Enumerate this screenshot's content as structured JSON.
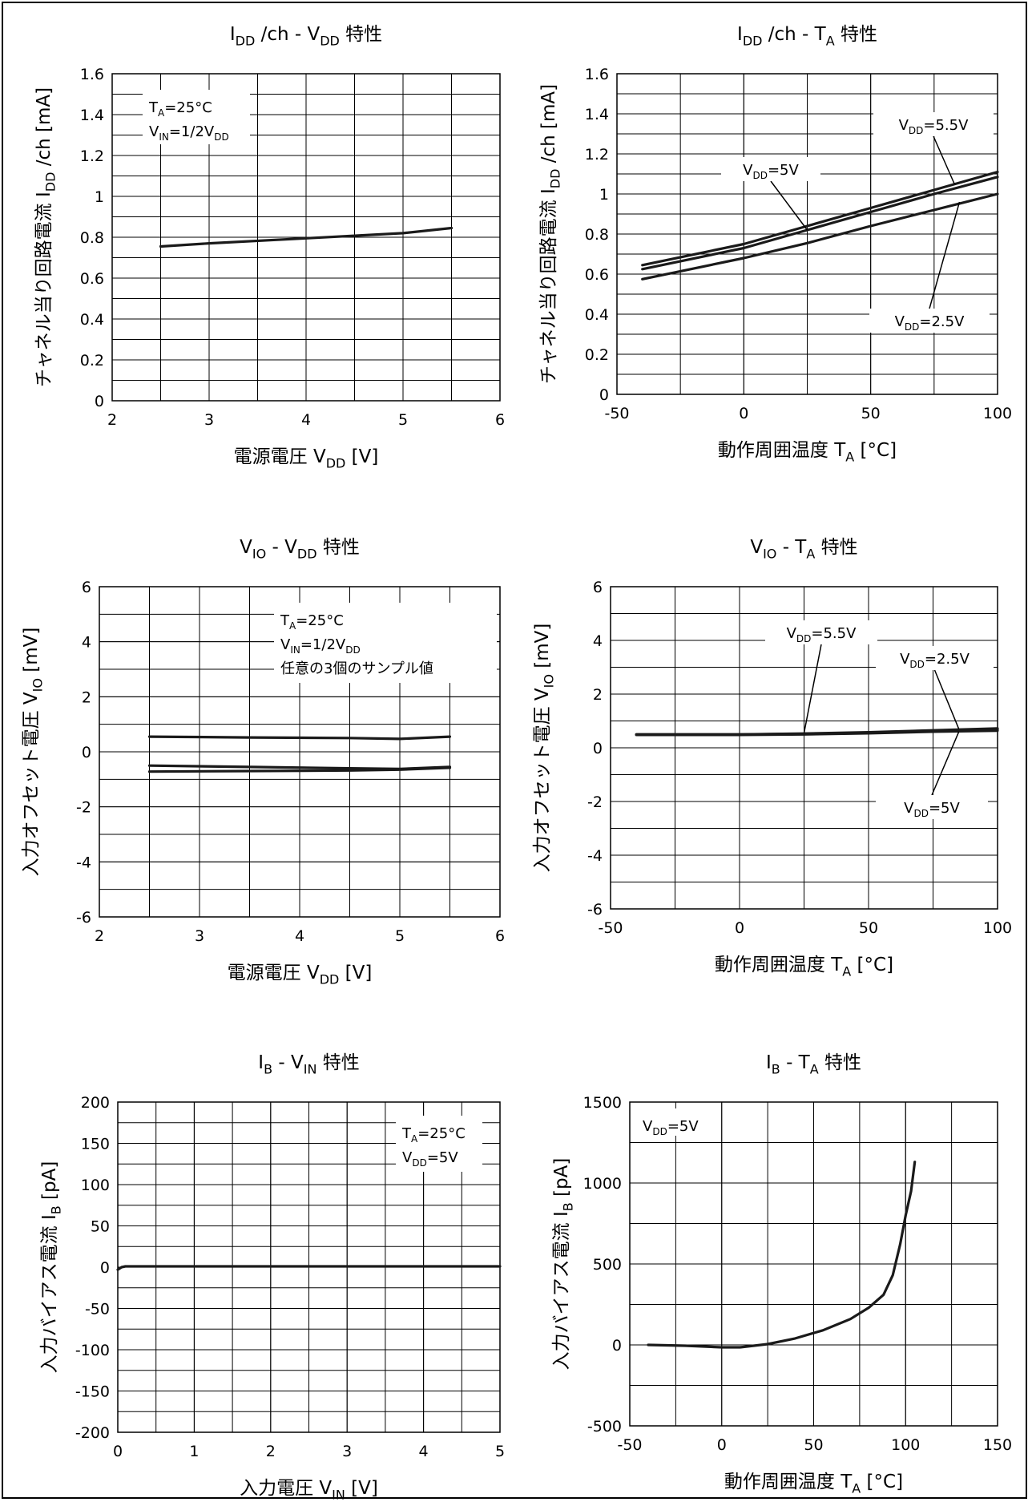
{
  "chart_data": [
    {
      "type": "line",
      "title": "I_DD /ch - V_DD 特性",
      "xlabel": "電源電圧 V_DD [V]",
      "ylabel": "チャネル当り回路電流 I_DD /ch [mA]",
      "xlim": [
        2,
        6
      ],
      "ylim": [
        0,
        1.6
      ],
      "xticks": [
        2,
        3,
        4,
        5,
        6
      ],
      "yticks": [
        0,
        0.2,
        0.4,
        0.6,
        0.8,
        1,
        1.2,
        1.4,
        1.6
      ],
      "ytick_labels": [
        "0",
        "0.2",
        "0.4",
        "0.6",
        "0.8",
        "1",
        "1.2",
        "1.4",
        "1.6"
      ],
      "grid": {
        "x_minor": 2,
        "y_minor": 2
      },
      "annotations": [
        {
          "text": "T_A=25°C",
          "box": "top-left",
          "line": 0
        },
        {
          "text": "V_IN=1/2V_DD",
          "box": "top-left",
          "line": 1
        }
      ],
      "series": [
        {
          "name": "",
          "x": [
            2.5,
            3,
            4,
            5,
            5.5
          ],
          "values": [
            0.755,
            0.77,
            0.795,
            0.82,
            0.845
          ]
        }
      ]
    },
    {
      "type": "line",
      "title": "I_DD /ch - T_A 特性",
      "xlabel": "動作周囲温度 T_A [°C]",
      "ylabel": "チャネル当り回路電流 I_DD /ch [mA]",
      "xlim": [
        -50,
        100
      ],
      "ylim": [
        0,
        1.6
      ],
      "xticks": [
        -50,
        0,
        50,
        100
      ],
      "yticks": [
        0,
        0.2,
        0.4,
        0.6,
        0.8,
        1,
        1.2,
        1.4,
        1.6
      ],
      "ytick_labels": [
        "0",
        "0.2",
        "0.4",
        "0.6",
        "0.8",
        "1",
        "1.2",
        "1.4",
        "1.6"
      ],
      "grid": {
        "x_minor": 2,
        "y_minor": 2
      },
      "series": [
        {
          "name": "V_DD=5.5V",
          "x": [
            -40,
            0,
            25,
            50,
            75,
            100
          ],
          "values": [
            0.645,
            0.75,
            0.84,
            0.93,
            1.02,
            1.11
          ]
        },
        {
          "name": "V_DD=5V",
          "x": [
            -40,
            0,
            25,
            50,
            75,
            100
          ],
          "values": [
            0.625,
            0.73,
            0.82,
            0.91,
            1.0,
            1.085
          ]
        },
        {
          "name": "V_DD=2.5V",
          "x": [
            -40,
            0,
            25,
            50,
            75,
            100
          ],
          "values": [
            0.575,
            0.68,
            0.755,
            0.84,
            0.92,
            1.0
          ]
        }
      ],
      "callouts": [
        {
          "label": "V_DD=5.5V",
          "target_series": 0,
          "target_x": 83,
          "target_y": 1.05
        },
        {
          "label": "V_DD=5V",
          "target_series": 1,
          "target_x": 25,
          "target_y": 0.82
        },
        {
          "label": "V_DD=2.5V",
          "target_series": 2,
          "target_x": 85,
          "target_y": 0.96
        }
      ]
    },
    {
      "type": "line",
      "title": "V_IO - V_DD 特性",
      "xlabel": "電源電圧 V_DD [V]",
      "ylabel": "入力オフセット電圧 V_IO [mV]",
      "xlim": [
        2,
        6
      ],
      "ylim": [
        -6,
        6
      ],
      "xticks": [
        2,
        3,
        4,
        5,
        6
      ],
      "yticks": [
        -6,
        -4,
        -2,
        0,
        2,
        4,
        6
      ],
      "ytick_labels": [
        "-6",
        "-4",
        "-2",
        "0",
        "2",
        "4",
        "6"
      ],
      "grid": {
        "x_minor": 2,
        "y_minor": 2
      },
      "annotations": [
        {
          "text": "T_A=25°C",
          "box": "top-right",
          "line": 0
        },
        {
          "text": "V_IN=1/2V_DD",
          "box": "top-right",
          "line": 1
        },
        {
          "text": "任意の3個のサンプル値",
          "box": "top-right",
          "line": 2
        }
      ],
      "series": [
        {
          "name": "",
          "x": [
            2.5,
            3.5,
            4.5,
            5,
            5.5
          ],
          "values": [
            0.55,
            0.52,
            0.5,
            0.47,
            0.55
          ]
        },
        {
          "name": "",
          "x": [
            2.5,
            3.5,
            4.5,
            5,
            5.5
          ],
          "values": [
            -0.5,
            -0.55,
            -0.6,
            -0.62,
            -0.55
          ]
        },
        {
          "name": "",
          "x": [
            2.5,
            3.5,
            4.5,
            5,
            5.5
          ],
          "values": [
            -0.72,
            -0.7,
            -0.68,
            -0.65,
            -0.58
          ]
        }
      ]
    },
    {
      "type": "line",
      "title": "V_IO - T_A 特性",
      "xlabel": "動作周囲温度 T_A [°C]",
      "ylabel": "入力オフセット電圧 V_IO [mV]",
      "xlim": [
        -50,
        100
      ],
      "ylim": [
        -6,
        6
      ],
      "xticks": [
        -50,
        0,
        50,
        100
      ],
      "yticks": [
        -6,
        -4,
        -2,
        0,
        2,
        4,
        6
      ],
      "ytick_labels": [
        "-6",
        "-4",
        "-2",
        "0",
        "2",
        "4",
        "6"
      ],
      "grid": {
        "x_minor": 2,
        "y_minor": 2
      },
      "series": [
        {
          "name": "V_DD=5.5V",
          "x": [
            -40,
            0,
            25,
            50,
            75,
            100
          ],
          "values": [
            0.5,
            0.5,
            0.52,
            0.56,
            0.62,
            0.68
          ]
        },
        {
          "name": "V_DD=2.5V",
          "x": [
            -40,
            0,
            25,
            50,
            75,
            100
          ],
          "values": [
            0.5,
            0.5,
            0.53,
            0.58,
            0.65,
            0.72
          ]
        },
        {
          "name": "V_DD=5V",
          "x": [
            -40,
            0,
            25,
            50,
            75,
            100
          ],
          "values": [
            0.48,
            0.48,
            0.5,
            0.54,
            0.6,
            0.64
          ]
        }
      ],
      "callouts": [
        {
          "label": "V_DD=5.5V",
          "target_series": 0,
          "target_x": 25,
          "target_y": 0.55
        },
        {
          "label": "V_DD=2.5V",
          "target_series": 1,
          "target_x": 85,
          "target_y": 0.7
        },
        {
          "label": "V_DD=5V",
          "target_series": 2,
          "target_x": 85,
          "target_y": 0.6
        }
      ]
    },
    {
      "type": "line",
      "title": "I_B - V_IN 特性",
      "xlabel": "入力電圧 V_IN [V]",
      "ylabel": "入力バイアス電流 I_B [pA]",
      "xlim": [
        0,
        5
      ],
      "ylim": [
        -200,
        200
      ],
      "xticks": [
        0,
        1,
        2,
        3,
        4,
        5
      ],
      "yticks": [
        -200,
        -150,
        -100,
        -50,
        0,
        50,
        100,
        150,
        200
      ],
      "ytick_labels": [
        "-200",
        "-150",
        "-100",
        "-50",
        "0",
        "50",
        "100",
        "150",
        "200"
      ],
      "grid": {
        "x_minor": 2,
        "y_minor": 2
      },
      "annotations": [
        {
          "text": "T_A=25°C",
          "box": "top-right",
          "line": 0
        },
        {
          "text": "V_DD=5V",
          "box": "top-right",
          "line": 1
        }
      ],
      "series": [
        {
          "name": "",
          "x": [
            0,
            0.05,
            0.1,
            0.5,
            1,
            2,
            3,
            4,
            5
          ],
          "values": [
            -3,
            0,
            1,
            1,
            1,
            1,
            1,
            1,
            1
          ]
        }
      ]
    },
    {
      "type": "line",
      "title": "I_B - T_A 特性",
      "xlabel": "動作周囲温度 T_A [°C]",
      "ylabel": "入力バイアス電流 I_B [pA]",
      "xlim": [
        -50,
        150
      ],
      "ylim": [
        -500,
        1500
      ],
      "xticks": [
        -50,
        0,
        50,
        100,
        150
      ],
      "yticks": [
        -500,
        0,
        500,
        1000,
        1500
      ],
      "ytick_labels": [
        "-500",
        "0",
        "500",
        "1000",
        "1500"
      ],
      "grid": {
        "x_minor": 2,
        "y_minor": 2
      },
      "annotations": [
        {
          "text": "V_DD=5V",
          "box": "top-left",
          "line": 0
        }
      ],
      "series": [
        {
          "name": "",
          "x": [
            -40,
            -20,
            0,
            10,
            25,
            40,
            55,
            70,
            80,
            88,
            93,
            97,
            100,
            103,
            105
          ],
          "values": [
            0,
            -5,
            -15,
            -15,
            5,
            40,
            90,
            160,
            230,
            310,
            430,
            620,
            800,
            950,
            1130
          ]
        }
      ]
    }
  ]
}
